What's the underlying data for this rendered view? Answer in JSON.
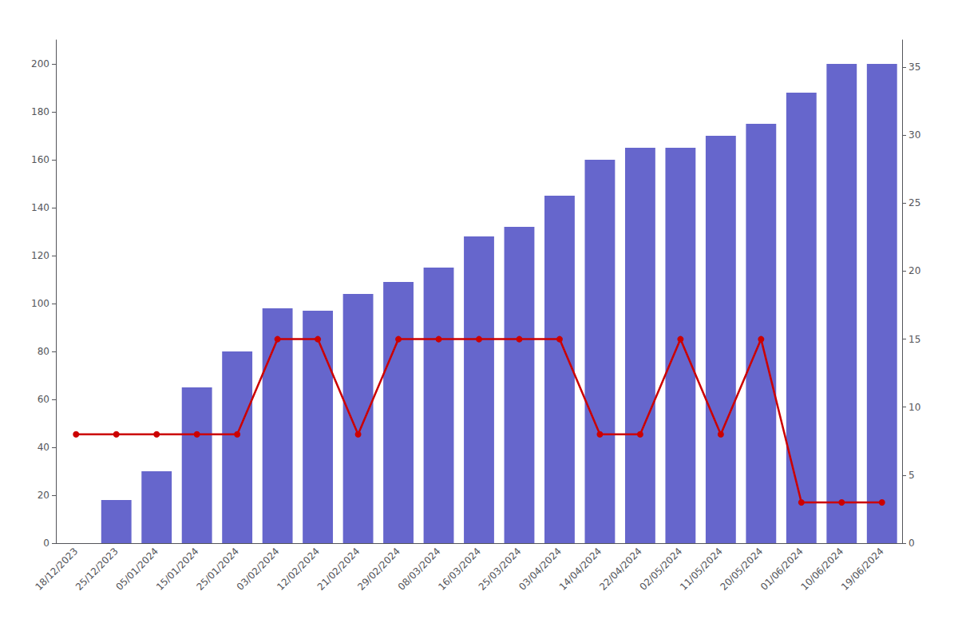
{
  "chart_data": {
    "type": "bar",
    "categories": [
      "18/12/2023",
      "25/12/2023",
      "05/01/2024",
      "15/01/2024",
      "25/01/2024",
      "03/02/2024",
      "12/02/2024",
      "21/02/2024",
      "29/02/2024",
      "08/03/2024",
      "16/03/2024",
      "25/03/2024",
      "03/04/2024",
      "14/04/2024",
      "22/04/2024",
      "02/05/2024",
      "11/05/2024",
      "20/05/2024",
      "01/06/2024",
      "10/06/2024",
      "19/06/2024"
    ],
    "series": [
      {
        "type": "bar",
        "color": "#6666cc",
        "values": [
          0,
          18,
          30,
          65,
          80,
          98,
          97,
          104,
          109,
          115,
          128,
          132,
          145,
          160,
          165,
          165,
          170,
          175,
          188,
          200,
          200
        ]
      },
      {
        "type": "line",
        "color": "#cc0000",
        "marker": "circle",
        "axis": "y2",
        "values": [
          8,
          8,
          8,
          8,
          8,
          15,
          15,
          8,
          15,
          15,
          15,
          15,
          15,
          8,
          8,
          15,
          8,
          15,
          3,
          3,
          3
        ]
      }
    ],
    "ylim": [
      0,
      210
    ],
    "yticks": [
      0,
      20,
      40,
      60,
      80,
      100,
      120,
      140,
      160,
      180,
      200
    ],
    "y2lim": [
      0,
      37
    ],
    "y2ticks": [
      0,
      5,
      10,
      15,
      20,
      25,
      30,
      35
    ],
    "grid": false
  }
}
